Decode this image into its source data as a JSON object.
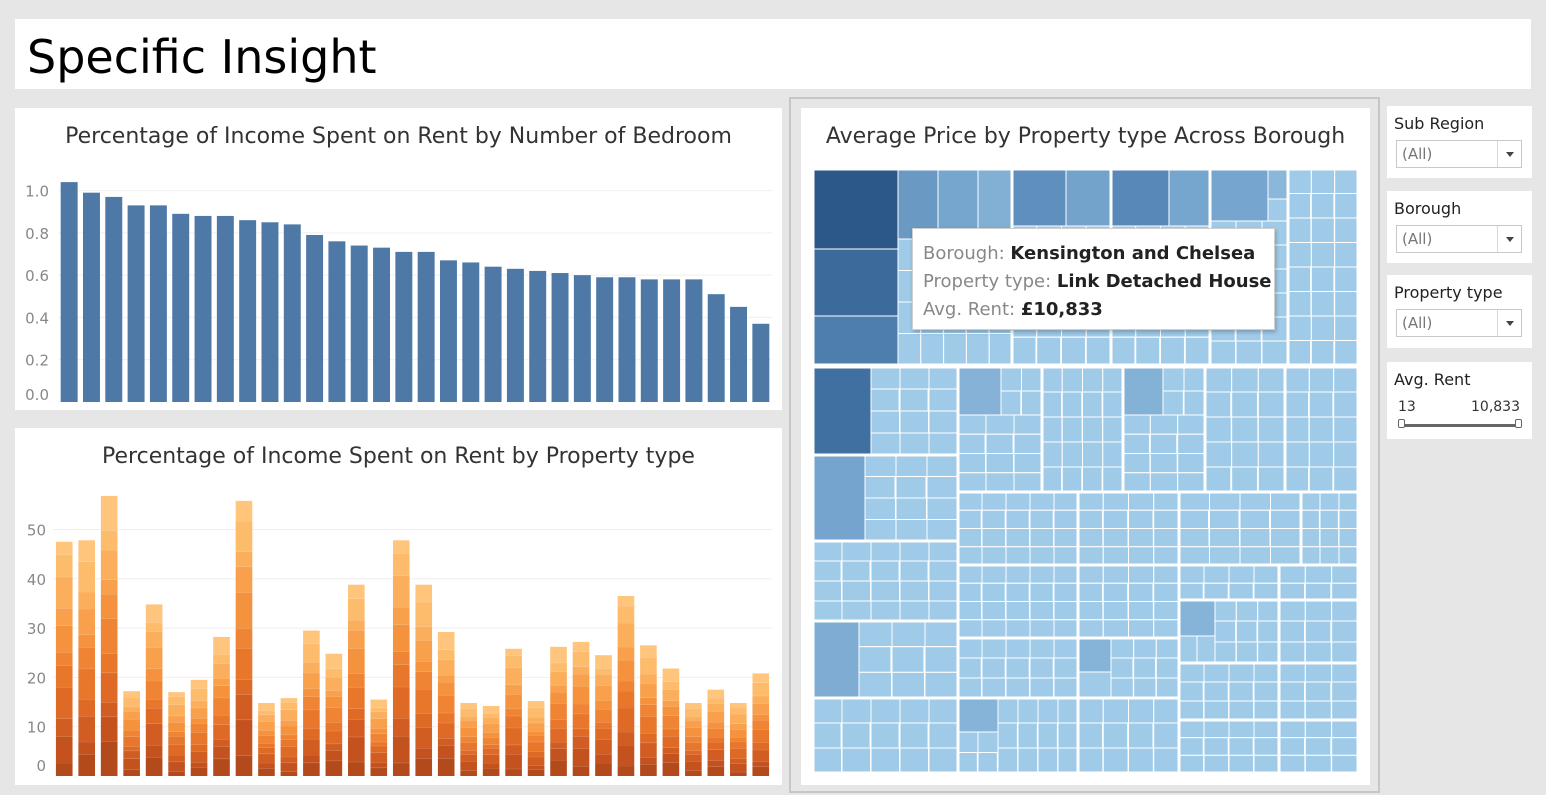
{
  "page": {
    "title": "Specific Insight"
  },
  "colors": {
    "bar_blue": "#4e79a7",
    "treemap_light": "#a0cbe8",
    "treemap_dark": "#2c5887",
    "orange_light": "#ffc07a",
    "orange_dark": "#b24a1c"
  },
  "chart_data": [
    {
      "type": "bar",
      "title": "Percentage of Income Spent on Rent by Number of Bedroom",
      "xlabel": "",
      "ylabel": "",
      "ylim": [
        0,
        1.05
      ],
      "yticks": [
        "1.0",
        "0.8",
        "0.6",
        "0.4",
        "0.2",
        "0.0"
      ],
      "grid": true,
      "values": [
        1.04,
        0.99,
        0.97,
        0.93,
        0.93,
        0.89,
        0.88,
        0.88,
        0.86,
        0.85,
        0.84,
        0.79,
        0.76,
        0.74,
        0.73,
        0.71,
        0.71,
        0.67,
        0.66,
        0.64,
        0.63,
        0.62,
        0.61,
        0.6,
        0.59,
        0.59,
        0.58,
        0.58,
        0.58,
        0.51,
        0.45,
        0.37
      ]
    },
    {
      "type": "bar",
      "stacked": true,
      "title": "Percentage of Income Spent on Rent by Property type",
      "xlabel": "",
      "ylabel": "",
      "ylim": [
        0,
        58
      ],
      "yticks": [
        "50",
        "40",
        "30",
        "20",
        "10",
        "0"
      ],
      "grid": true,
      "values": [
        47.5,
        47.8,
        56.8,
        17.2,
        34.8,
        17.0,
        19.5,
        28.2,
        55.8,
        14.8,
        15.8,
        29.5,
        24.8,
        38.8,
        15.5,
        47.8,
        38.8,
        29.2,
        14.8,
        14.2,
        25.8,
        15.2,
        26.2,
        27.2,
        24.5,
        36.5,
        26.5,
        21.8,
        14.8,
        17.5,
        14.8,
        20.8
      ]
    },
    {
      "type": "heatmap",
      "subtype": "treemap",
      "title": "Average Price by Property type Across Borough",
      "color_range_avg_rent": [
        13,
        10833
      ]
    }
  ],
  "tooltip": {
    "borough_label": "Borough:",
    "borough_value": "Kensington and Chelsea",
    "ptype_label": "Property type:",
    "ptype_value": "Link Detached House",
    "rent_label": "Avg. Rent:",
    "rent_value": "£10,833"
  },
  "filters": {
    "sub_region": {
      "label": "Sub Region",
      "value": "(All)"
    },
    "borough": {
      "label": "Borough",
      "value": "(All)"
    },
    "property_type": {
      "label": "Property type",
      "value": "(All)"
    },
    "avg_rent": {
      "label": "Avg. Rent",
      "min": "13",
      "max": "10,833"
    }
  }
}
